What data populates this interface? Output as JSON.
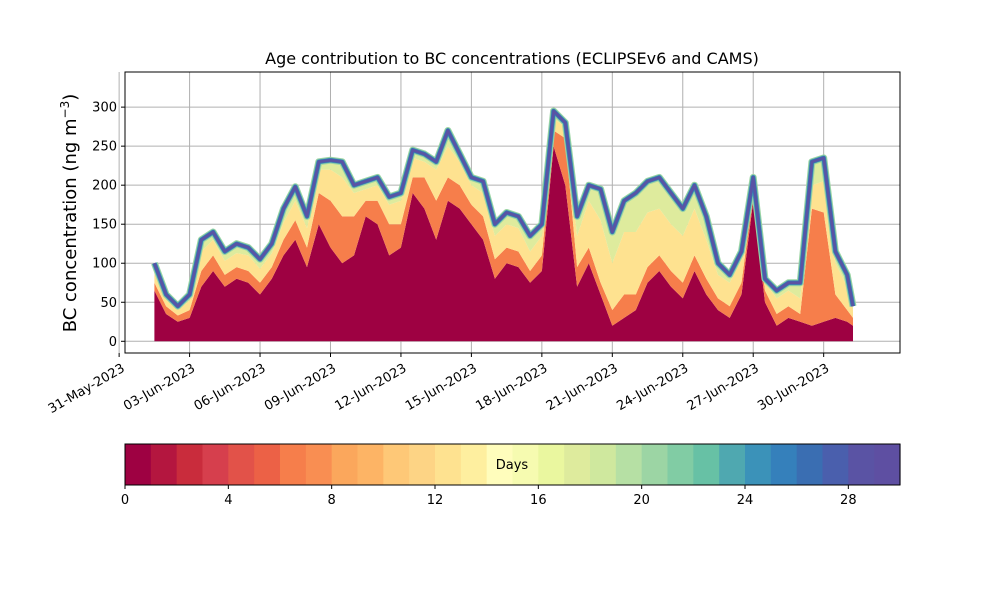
{
  "chart_data": {
    "type": "area",
    "title": "Age contribution to BC concentrations (ECLIPSEv6 and CAMS)",
    "xlabel": "",
    "ylabel": "BC concentration (ng m",
    "ylabel_superscript": "−3",
    "ylabel_close": ")",
    "xlim": [
      "2023-05-31T06:00",
      "2023-07-03T06:00"
    ],
    "ylim": [
      -15,
      345
    ],
    "grid": true,
    "yticks": [
      0,
      50,
      100,
      150,
      200,
      250,
      300
    ],
    "xticks": [
      {
        "date": "2023-05-31",
        "label": "31-May-2023"
      },
      {
        "date": "2023-06-03",
        "label": "03-Jun-2023"
      },
      {
        "date": "2023-06-06",
        "label": "06-Jun-2023"
      },
      {
        "date": "2023-06-09",
        "label": "09-Jun-2023"
      },
      {
        "date": "2023-06-12",
        "label": "12-Jun-2023"
      },
      {
        "date": "2023-06-15",
        "label": "15-Jun-2023"
      },
      {
        "date": "2023-06-18",
        "label": "18-Jun-2023"
      },
      {
        "date": "2023-06-21",
        "label": "21-Jun-2023"
      },
      {
        "date": "2023-06-24",
        "label": "24-Jun-2023"
      },
      {
        "date": "2023-06-27",
        "label": "27-Jun-2023"
      },
      {
        "date": "2023-06-30",
        "label": "30-Jun-2023"
      }
    ],
    "x": [
      "2023-06-01T12:00",
      "2023-06-02T00:00",
      "2023-06-02T12:00",
      "2023-06-03T00:00",
      "2023-06-03T12:00",
      "2023-06-04T00:00",
      "2023-06-04T12:00",
      "2023-06-05T00:00",
      "2023-06-05T12:00",
      "2023-06-06T00:00",
      "2023-06-06T12:00",
      "2023-06-07T00:00",
      "2023-06-07T12:00",
      "2023-06-08T00:00",
      "2023-06-08T12:00",
      "2023-06-09T00:00",
      "2023-06-09T12:00",
      "2023-06-10T00:00",
      "2023-06-10T12:00",
      "2023-06-11T00:00",
      "2023-06-11T12:00",
      "2023-06-12T00:00",
      "2023-06-12T12:00",
      "2023-06-13T00:00",
      "2023-06-13T12:00",
      "2023-06-14T00:00",
      "2023-06-14T12:00",
      "2023-06-15T00:00",
      "2023-06-15T12:00",
      "2023-06-16T00:00",
      "2023-06-16T12:00",
      "2023-06-17T00:00",
      "2023-06-17T12:00",
      "2023-06-18T00:00",
      "2023-06-18T12:00",
      "2023-06-19T00:00",
      "2023-06-19T12:00",
      "2023-06-20T00:00",
      "2023-06-20T12:00",
      "2023-06-21T00:00",
      "2023-06-21T12:00",
      "2023-06-22T00:00",
      "2023-06-22T12:00",
      "2023-06-23T00:00",
      "2023-06-23T12:00",
      "2023-06-24T00:00",
      "2023-06-24T12:00",
      "2023-06-25T00:00",
      "2023-06-25T12:00",
      "2023-06-26T00:00",
      "2023-06-26T12:00",
      "2023-06-27T00:00",
      "2023-06-27T12:00",
      "2023-06-28T00:00",
      "2023-06-28T12:00",
      "2023-06-29T00:00",
      "2023-06-29T12:00",
      "2023-06-30T00:00",
      "2023-06-30T12:00",
      "2023-07-01T00:00",
      "2023-07-01T06:00"
    ],
    "series": [
      {
        "values": [
          65,
          35,
          25,
          30,
          70,
          90,
          70,
          80,
          75,
          60,
          80,
          110,
          130,
          95,
          150,
          120,
          100,
          110,
          160,
          150,
          110,
          120,
          190,
          170,
          130,
          180,
          170,
          150,
          130,
          80,
          100,
          95,
          75,
          90,
          250,
          200,
          70,
          100,
          60,
          20,
          30,
          40,
          75,
          90,
          70,
          55,
          90,
          60,
          40,
          30,
          60,
          180,
          50,
          20,
          30,
          25,
          20,
          25,
          30,
          25,
          20
        ]
      },
      {
        "values": [
          10,
          10,
          8,
          10,
          20,
          20,
          15,
          15,
          15,
          15,
          15,
          20,
          25,
          25,
          40,
          60,
          60,
          50,
          20,
          30,
          40,
          30,
          20,
          40,
          50,
          30,
          30,
          25,
          30,
          25,
          20,
          20,
          15,
          20,
          20,
          60,
          25,
          20,
          15,
          20,
          30,
          20,
          20,
          20,
          20,
          20,
          20,
          20,
          15,
          15,
          15,
          10,
          15,
          15,
          15,
          10,
          150,
          140,
          30,
          15,
          10
        ]
      },
      {
        "values": [
          12,
          8,
          8,
          12,
          25,
          20,
          18,
          18,
          20,
          18,
          18,
          22,
          25,
          25,
          30,
          40,
          50,
          30,
          15,
          20,
          25,
          30,
          25,
          20,
          40,
          40,
          30,
          25,
          30,
          30,
          30,
          30,
          25,
          25,
          15,
          15,
          40,
          60,
          80,
          60,
          80,
          80,
          70,
          60,
          60,
          60,
          60,
          50,
          30,
          30,
          30,
          15,
          10,
          20,
          20,
          20,
          30,
          40,
          40,
          30,
          10
        ]
      },
      {
        "values": [
          13,
          7,
          4,
          8,
          15,
          10,
          12,
          12,
          10,
          12,
          12,
          18,
          18,
          15,
          10,
          12,
          20,
          10,
          10,
          10,
          10,
          10,
          10,
          10,
          10,
          20,
          10,
          10,
          15,
          15,
          15,
          15,
          20,
          15,
          10,
          5,
          25,
          20,
          40,
          40,
          40,
          50,
          40,
          40,
          40,
          35,
          30,
          30,
          15,
          10,
          10,
          5,
          5,
          10,
          10,
          20,
          30,
          30,
          15,
          15,
          5
        ]
      }
    ]
  },
  "colorbar": {
    "label": "Days",
    "ticks": [
      "0",
      "4",
      "8",
      "12",
      "16",
      "20",
      "24",
      "28"
    ],
    "max": 30,
    "colors": [
      "#9e0142",
      "#b4163f",
      "#c92c3c",
      "#d63f4d",
      "#e25249",
      "#ec6146",
      "#f67e4b",
      "#f98e52",
      "#fba75c",
      "#fdb465",
      "#fec877",
      "#fdd485",
      "#fee290",
      "#feef9f",
      "#fffdbc",
      "#f6fbb0",
      "#eaf79f",
      "#deeb9d",
      "#cfe89e",
      "#b6e0a4",
      "#9cd5a4",
      "#81cca4",
      "#67c1a5",
      "#4fa8b0",
      "#3b92b9",
      "#3580bb",
      "#3a6eb2",
      "#4a5fad",
      "#5a53a4",
      "#5e4fa2"
    ]
  }
}
